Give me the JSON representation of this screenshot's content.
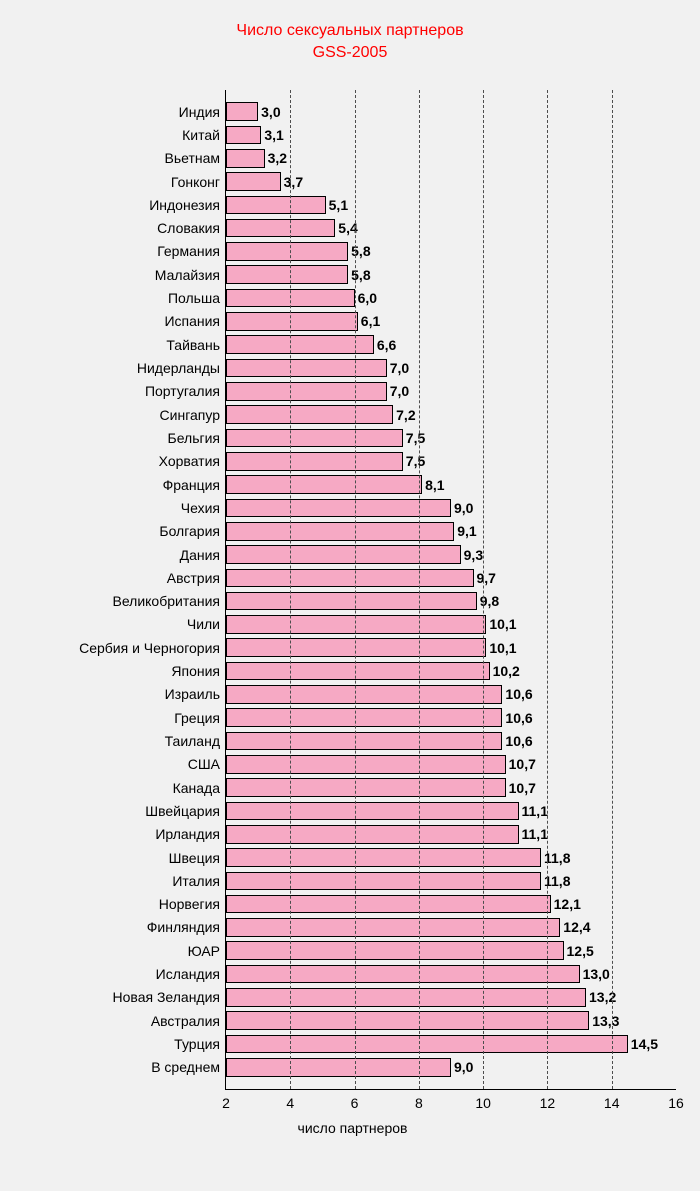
{
  "chart": {
    "type": "bar",
    "orientation": "horizontal",
    "title_line1": "Число сексуальных партнеров",
    "title_line2": "GSS-2005",
    "title_color": "#ff0000",
    "title_fontsize": 16,
    "label_fontsize": 14,
    "value_fontsize": 14,
    "background_color": "#f1f1f1",
    "bar_fill": "#f6a9c4",
    "bar_border": "#000000",
    "grid_color": "#4d4d4d",
    "grid_dash": true,
    "x_label": "число партнеров",
    "x_min": 2,
    "x_max": 16,
    "x_tick_step": 2,
    "label_area_width": 195,
    "plot_area_width": 450,
    "bars": [
      {
        "label": "Индия",
        "value": 3.0,
        "text": "3,0"
      },
      {
        "label": "Китай",
        "value": 3.1,
        "text": "3,1"
      },
      {
        "label": "Вьетнам",
        "value": 3.2,
        "text": "3,2"
      },
      {
        "label": "Гонконг",
        "value": 3.7,
        "text": "3,7"
      },
      {
        "label": "Индонезия",
        "value": 5.1,
        "text": "5,1"
      },
      {
        "label": "Словакия",
        "value": 5.4,
        "text": "5,4"
      },
      {
        "label": "Германия",
        "value": 5.8,
        "text": "5,8"
      },
      {
        "label": "Малайзия",
        "value": 5.8,
        "text": "5,8"
      },
      {
        "label": "Польша",
        "value": 6.0,
        "text": "6,0"
      },
      {
        "label": "Испания",
        "value": 6.1,
        "text": "6,1"
      },
      {
        "label": "Тайвань",
        "value": 6.6,
        "text": "6,6"
      },
      {
        "label": "Нидерланды",
        "value": 7.0,
        "text": "7,0"
      },
      {
        "label": "Португалия",
        "value": 7.0,
        "text": "7,0"
      },
      {
        "label": "Сингапур",
        "value": 7.2,
        "text": "7,2"
      },
      {
        "label": "Бельгия",
        "value": 7.5,
        "text": "7,5"
      },
      {
        "label": "Хорватия",
        "value": 7.5,
        "text": "7,5"
      },
      {
        "label": "Франция",
        "value": 8.1,
        "text": "8,1"
      },
      {
        "label": "Чехия",
        "value": 9.0,
        "text": "9,0"
      },
      {
        "label": "Болгария",
        "value": 9.1,
        "text": "9,1"
      },
      {
        "label": "Дания",
        "value": 9.3,
        "text": "9,3"
      },
      {
        "label": "Австрия",
        "value": 9.7,
        "text": "9,7"
      },
      {
        "label": "Великобритания",
        "value": 9.8,
        "text": "9,8"
      },
      {
        "label": "Чили",
        "value": 10.1,
        "text": "10,1"
      },
      {
        "label": "Сербия и Черногория",
        "value": 10.1,
        "text": "10,1"
      },
      {
        "label": "Япония",
        "value": 10.2,
        "text": "10,2"
      },
      {
        "label": "Израиль",
        "value": 10.6,
        "text": "10,6"
      },
      {
        "label": "Греция",
        "value": 10.6,
        "text": "10,6"
      },
      {
        "label": "Таиланд",
        "value": 10.6,
        "text": "10,6"
      },
      {
        "label": "США",
        "value": 10.7,
        "text": "10,7"
      },
      {
        "label": "Канада",
        "value": 10.7,
        "text": "10,7"
      },
      {
        "label": "Швейцария",
        "value": 11.1,
        "text": "11,1"
      },
      {
        "label": "Ирландия",
        "value": 11.1,
        "text": "11,1"
      },
      {
        "label": "Швеция",
        "value": 11.8,
        "text": "11,8"
      },
      {
        "label": "Италия",
        "value": 11.8,
        "text": "11,8"
      },
      {
        "label": "Норвегия",
        "value": 12.1,
        "text": "12,1"
      },
      {
        "label": "Финляндия",
        "value": 12.4,
        "text": "12,4"
      },
      {
        "label": "ЮАР",
        "value": 12.5,
        "text": "12,5"
      },
      {
        "label": "Исландия",
        "value": 13.0,
        "text": "13,0"
      },
      {
        "label": "Новая Зеландия",
        "value": 13.2,
        "text": "13,2"
      },
      {
        "label": "Австралия",
        "value": 13.3,
        "text": "13,3"
      },
      {
        "label": "Турция",
        "value": 14.5,
        "text": "14,5"
      },
      {
        "label": "В среднем",
        "value": 9.0,
        "text": "9,0"
      }
    ]
  }
}
